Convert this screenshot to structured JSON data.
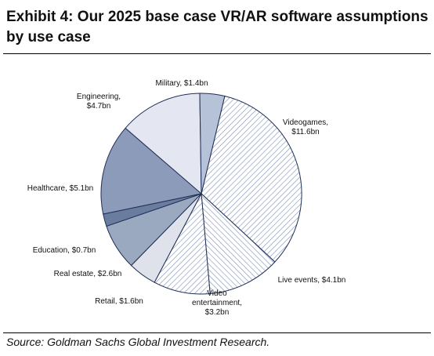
{
  "exhibit": {
    "title": "Exhibit 4: Our 2025 base case VR/AR software assumptions by use case",
    "source": "Source: Goldman Sachs Global Investment Research."
  },
  "chart_data": {
    "type": "pie",
    "title": "Exhibit 4: Our 2025 base case VR/AR software assumptions by use case",
    "unit": "$bn",
    "slices": [
      {
        "name": "Videogames",
        "value": 11.6,
        "lines": [
          "Videogames,",
          "$11.6bn"
        ],
        "fill": "hatch-a"
      },
      {
        "name": "Live events",
        "value": 4.1,
        "lines": [
          "Live events, $4.1bn"
        ],
        "fill": "hatch-b"
      },
      {
        "name": "Video entertainment",
        "value": 3.2,
        "lines": [
          "Video",
          "entertainment,",
          "$3.2bn"
        ],
        "fill": "hatch-a"
      },
      {
        "name": "Retail",
        "value": 1.6,
        "lines": [
          "Retail, $1.6bn"
        ],
        "fill": "#dfe2ea"
      },
      {
        "name": "Real estate",
        "value": 2.6,
        "lines": [
          "Real estate, $2.6bn"
        ],
        "fill": "#9aa8c0"
      },
      {
        "name": "Education",
        "value": 0.7,
        "lines": [
          "Education, $0.7bn"
        ],
        "fill": "#6a7d9e"
      },
      {
        "name": "Healthcare",
        "value": 5.1,
        "lines": [
          "Healthcare, $5.1bn"
        ],
        "fill": "#8d9bba"
      },
      {
        "name": "Engineering",
        "value": 4.7,
        "lines": [
          "Engineering,",
          "$4.7bn"
        ],
        "fill": "#e4e7f1"
      },
      {
        "name": "Military",
        "value": 1.4,
        "lines": [
          "Military, $1.4bn"
        ],
        "fill": "#b6c2d8"
      }
    ]
  }
}
